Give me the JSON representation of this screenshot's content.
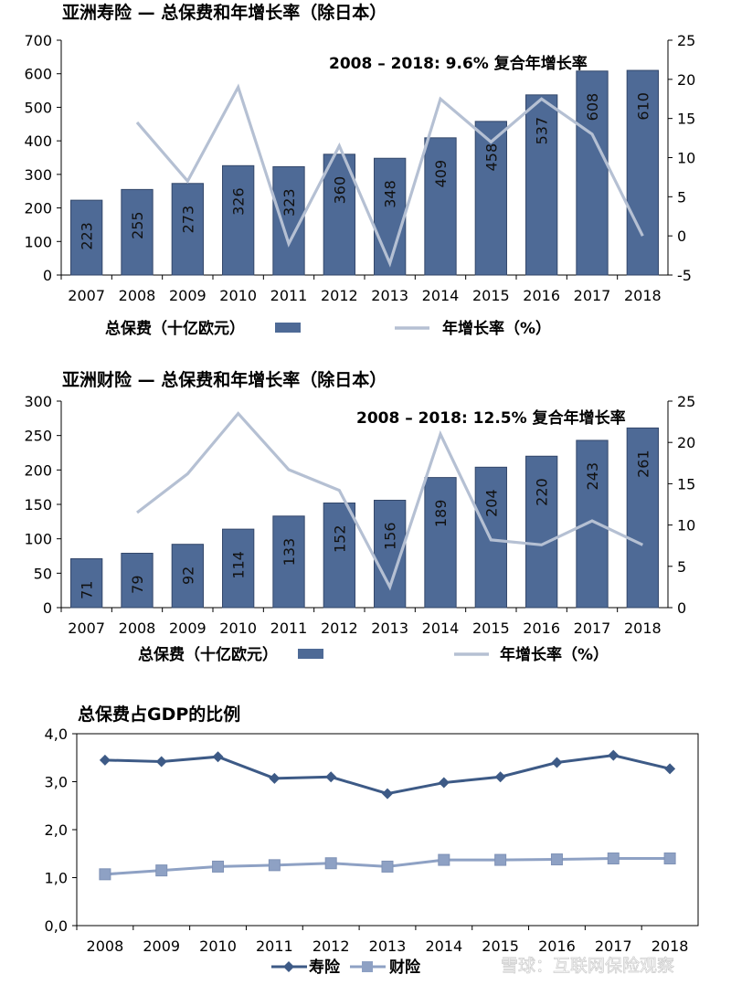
{
  "charts": [
    {
      "type": "bar",
      "title": "亚洲寿险 — 总保费和年增长率（除日本）",
      "annotation": "2008 – 2018: 9.6% 复合年增长率",
      "categories": [
        "2007",
        "2008",
        "2009",
        "2010",
        "2011",
        "2012",
        "2013",
        "2014",
        "2015",
        "2016",
        "2017",
        "2018"
      ],
      "series": [
        {
          "name": "总保费（十亿欧元）",
          "type": "bar",
          "axis": "left",
          "values": [
            223,
            255,
            273,
            326,
            323,
            360,
            348,
            409,
            458,
            537,
            608,
            610
          ],
          "labels": [
            "223",
            "255",
            "273",
            "326",
            "323",
            "360",
            "348",
            "409",
            "458",
            "537",
            "608",
            "610"
          ]
        },
        {
          "name": "年增长率（%）",
          "type": "line",
          "axis": "right",
          "values": [
            null,
            14.5,
            7,
            19,
            -1,
            11.5,
            -3.5,
            17.5,
            12,
            17.5,
            13,
            0
          ]
        }
      ],
      "ylim": [
        0,
        700
      ],
      "yticks": [
        "0",
        "100",
        "200",
        "300",
        "400",
        "500",
        "600",
        "700"
      ],
      "y2lim": [
        -5,
        25
      ],
      "y2ticks": [
        "-5",
        "0",
        "5",
        "10",
        "15",
        "20",
        "25"
      ],
      "legend_position": "bottom"
    },
    {
      "type": "bar",
      "title": "亚洲财险 — 总保费和年增长率（除日本）",
      "annotation": "2008 – 2018: 12.5%  复合年增长率",
      "categories": [
        "2007",
        "2008",
        "2009",
        "2010",
        "2011",
        "2012",
        "2013",
        "2014",
        "2015",
        "2016",
        "2017",
        "2018"
      ],
      "series": [
        {
          "name": "总保费（十亿欧元）",
          "type": "bar",
          "axis": "left",
          "values": [
            71,
            79,
            92,
            114,
            133,
            152,
            156,
            189,
            204,
            220,
            243,
            261
          ],
          "labels": [
            "71",
            "79",
            "92",
            "114",
            "133",
            "152",
            "156",
            "189",
            "204",
            "220",
            "243",
            "261"
          ]
        },
        {
          "name": "年增长率（%）",
          "type": "line",
          "axis": "right",
          "values": [
            null,
            11.5,
            16.2,
            23.5,
            16.7,
            14.2,
            2.5,
            21,
            8.2,
            7.6,
            10.5,
            7.6
          ]
        }
      ],
      "ylim": [
        0,
        300
      ],
      "yticks": [
        "0",
        "50",
        "100",
        "150",
        "200",
        "250",
        "300"
      ],
      "y2lim": [
        0,
        25
      ],
      "y2ticks": [
        "0",
        "5",
        "10",
        "15",
        "20",
        "25"
      ],
      "legend_position": "bottom"
    },
    {
      "type": "line",
      "title": "总保费占GDP的比例",
      "categories": [
        "2008",
        "2009",
        "2010",
        "2011",
        "2012",
        "2013",
        "2014",
        "2015",
        "2016",
        "2017",
        "2018"
      ],
      "series": [
        {
          "name": "寿险",
          "marker": "diamond",
          "values": [
            3.45,
            3.42,
            3.52,
            3.07,
            3.1,
            2.75,
            2.98,
            3.1,
            3.4,
            3.55,
            3.27
          ]
        },
        {
          "name": "财险",
          "marker": "square",
          "values": [
            1.07,
            1.15,
            1.23,
            1.26,
            1.3,
            1.23,
            1.37,
            1.37,
            1.38,
            1.4,
            1.4
          ]
        }
      ],
      "ylim": [
        0,
        4
      ],
      "yticks": [
        "0,0",
        "1,0",
        "2,0",
        "3,0",
        "4,0"
      ],
      "legend_position": "bottom"
    }
  ],
  "colors": {
    "bar": "#4e6a96",
    "bar_edge": "#33476a",
    "growth_line": "#b5c0d3",
    "life_line": "#3d5a86",
    "pc_line": "#8ea1c4"
  },
  "watermark": "雪球：互联网保险观察"
}
